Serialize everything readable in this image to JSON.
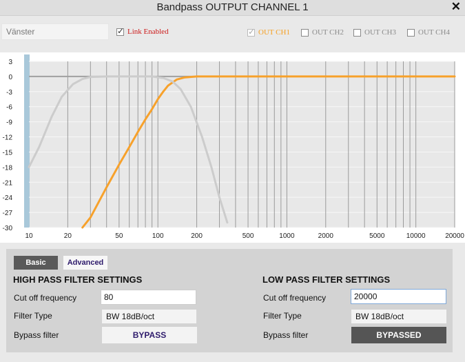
{
  "window": {
    "title": "Bandpass OUTPUT CHANNEL 1"
  },
  "name_input": {
    "placeholder": "Vänster"
  },
  "link": {
    "label": "Link Enabled",
    "checked": true,
    "color": "#cc1a1a"
  },
  "channels": [
    {
      "label": "OUT CH1",
      "checked": true,
      "color": "#f5a023"
    },
    {
      "label": "OUT CH2",
      "checked": false,
      "color": "#8a8a8a"
    },
    {
      "label": "OUT CH3",
      "checked": false,
      "color": "#8a8a8a"
    },
    {
      "label": "OUT CH4",
      "checked": false,
      "color": "#8a8a8a"
    }
  ],
  "chart_data": {
    "type": "line",
    "x_scale": "log",
    "xlim": [
      10,
      20000
    ],
    "ylim": [
      -30,
      3
    ],
    "x_ticks": [
      10,
      20,
      50,
      100,
      200,
      500,
      1000,
      2000,
      5000,
      10000,
      20000
    ],
    "y_ticks": [
      3,
      0,
      -3,
      -6,
      -9,
      -12,
      -15,
      -18,
      -21,
      -24,
      -27,
      -30
    ],
    "grid": true,
    "series": [
      {
        "color": "#f7a12b",
        "points": [
          [
            26,
            -30
          ],
          [
            30,
            -28
          ],
          [
            40,
            -22
          ],
          [
            50,
            -17.5
          ],
          [
            60,
            -14
          ],
          [
            70,
            -11
          ],
          [
            80,
            -8.5
          ],
          [
            90,
            -6.5
          ],
          [
            100,
            -4.5
          ],
          [
            110,
            -3
          ],
          [
            120,
            -1.8
          ],
          [
            140,
            -0.6
          ],
          [
            160,
            -0.2
          ],
          [
            200,
            0
          ],
          [
            20000,
            0
          ]
        ]
      },
      {
        "color": "#cccccc",
        "points": [
          [
            10,
            -18
          ],
          [
            12,
            -14
          ],
          [
            15,
            -8
          ],
          [
            18,
            -4
          ],
          [
            22,
            -1.5
          ],
          [
            26,
            -0.5
          ],
          [
            30,
            -0.1
          ],
          [
            40,
            0
          ],
          [
            90,
            0
          ],
          [
            110,
            -0.3
          ],
          [
            130,
            -1
          ],
          [
            150,
            -2.5
          ],
          [
            180,
            -6
          ],
          [
            220,
            -12
          ],
          [
            260,
            -18
          ],
          [
            300,
            -24
          ],
          [
            345,
            -29
          ]
        ]
      }
    ]
  },
  "tabs": {
    "basic": "Basic",
    "advanced": "Advanced"
  },
  "highpass": {
    "title": "HIGH PASS FILTER SETTINGS",
    "cutoff_label": "Cut off frequency",
    "cutoff_value": "80",
    "type_label": "Filter Type",
    "type_value": "BW 18dB/oct",
    "bypass_label": "Bypass filter",
    "bypass_button": "BYPASS"
  },
  "lowpass": {
    "title": "LOW PASS FILTER SETTINGS",
    "cutoff_label": "Cut off frequency",
    "cutoff_value": "20000",
    "type_label": "Filter Type",
    "type_value": "BW 18dB/oct",
    "bypass_label": "Bypass filter",
    "bypass_button": "BYPASSED"
  }
}
